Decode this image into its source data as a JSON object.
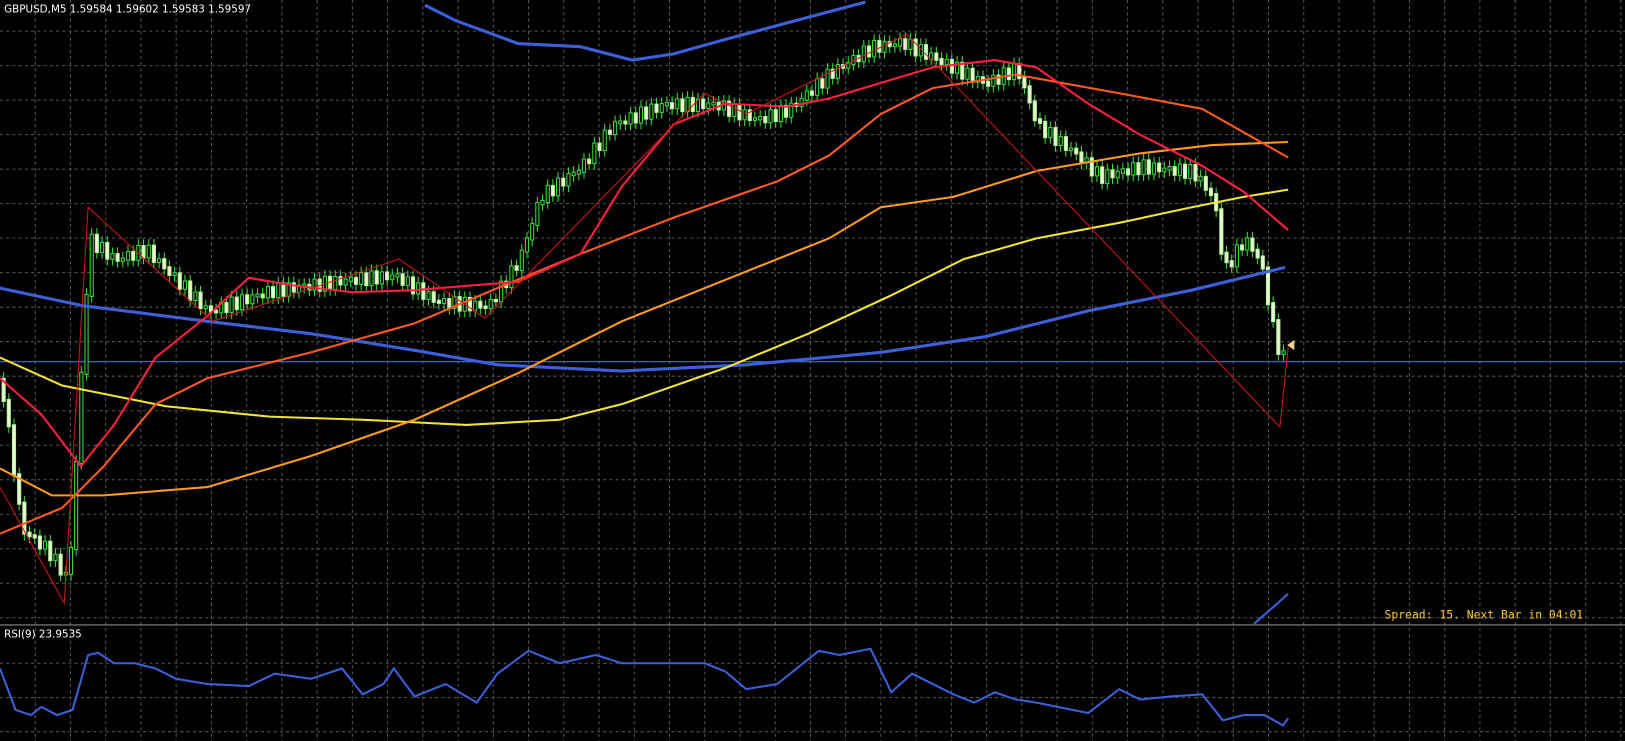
{
  "header": {
    "symbol_info": "GBPUSD,M5  1.59584 1.59602 1.59583 1.59597"
  },
  "status": {
    "spread": "Spread: 15. Next Bar in 04:01"
  },
  "indicator": {
    "label": "RSI(9) 23.9535"
  }
}
